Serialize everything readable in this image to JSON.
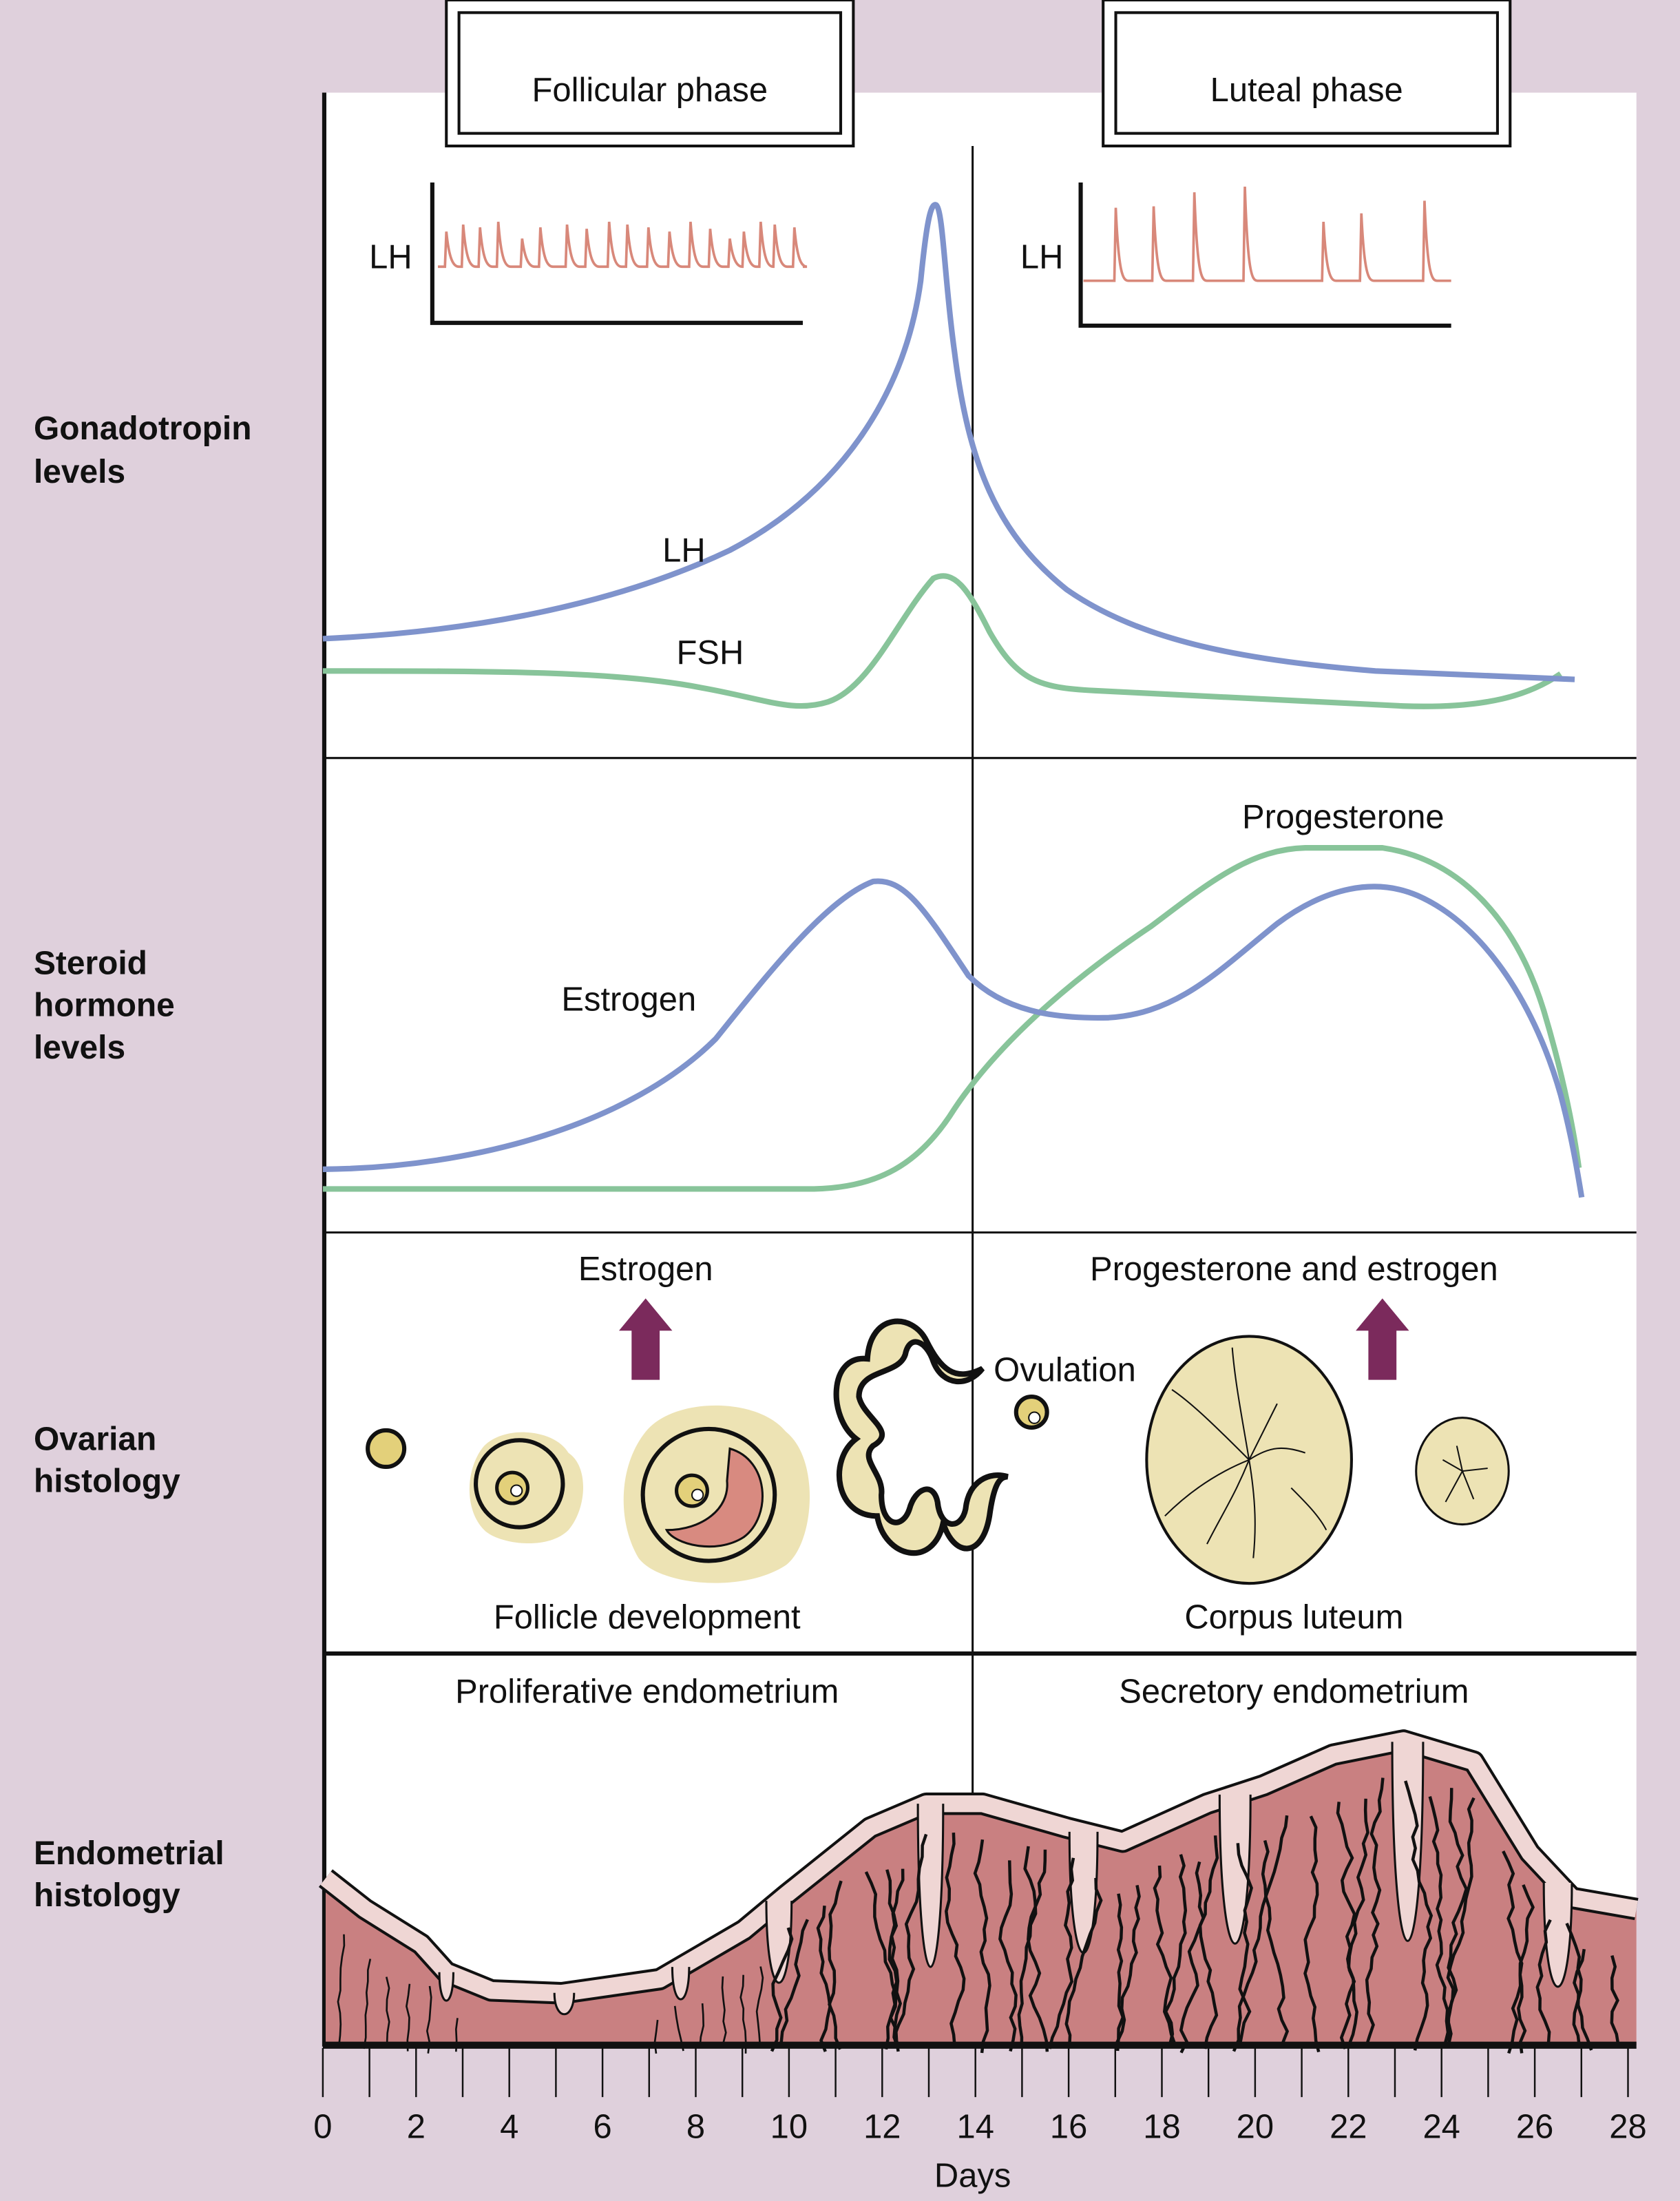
{
  "phases": {
    "follicular": "Follicular phase",
    "luteal": "Luteal phase"
  },
  "row_labels": {
    "gonadotropin": [
      "Gonadotropin",
      "levels"
    ],
    "steroid": [
      "Steroid",
      "hormone",
      "levels"
    ],
    "ovarian": [
      "Ovarian",
      "histology"
    ],
    "endometrial": [
      "Endometrial",
      "histology"
    ]
  },
  "gonadotropin": {
    "inset_label_left": "LH",
    "inset_label_right": "LH",
    "lh_label": "LH",
    "fsh_label": "FSH"
  },
  "steroid": {
    "estrogen_label": "Estrogen",
    "progesterone_label": "Progesterone"
  },
  "ovarian": {
    "estrogen_label": "Estrogen",
    "prog_estrogen_label": "Progesterone and estrogen",
    "ovulation_label": "Ovulation",
    "follicle_label": "Follicle development",
    "corpus_label": "Corpus luteum"
  },
  "endometrium": {
    "proliferative_label": "Proliferative endometrium",
    "secretory_label": "Secretory endometrium"
  },
  "axis": {
    "label": "Days",
    "min": 0,
    "max": 28,
    "ovulation_day": 14,
    "tick_labels": [
      "0",
      "2",
      "4",
      "6",
      "8",
      "10",
      "12",
      "14",
      "16",
      "18",
      "20",
      "22",
      "24",
      "26",
      "28"
    ]
  },
  "colors": {
    "background": "#dfd0dc",
    "lh": "#7f93cc",
    "fsh": "#88c49a",
    "pulse": "#d8887a",
    "arrow": "#7b2a5c",
    "follicle": "#ede3b4",
    "endometrium": "#c98081",
    "endometrium_surface": "#efd6d4"
  }
}
